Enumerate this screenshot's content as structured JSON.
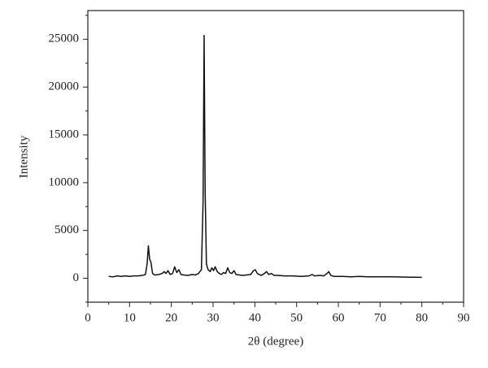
{
  "chart_data": {
    "type": "line",
    "xlabel": "2θ (degree)",
    "ylabel": "Intensity",
    "xlim": [
      0,
      90
    ],
    "xticks": [
      0,
      10,
      20,
      30,
      40,
      50,
      60,
      70,
      80,
      90
    ],
    "ylim": [
      -2500,
      28000
    ],
    "yticks": [
      0,
      5000,
      10000,
      15000,
      20000,
      25000
    ],
    "x": [
      5,
      6,
      7,
      8,
      9,
      10,
      11,
      12,
      13,
      13.8,
      14.2,
      14.5,
      14.8,
      15.1,
      15.5,
      16,
      17,
      17.8,
      18.3,
      18.7,
      19.2,
      19.7,
      20.3,
      20.8,
      21.3,
      21.8,
      22.3,
      23,
      24,
      25,
      25.8,
      26.5,
      27.2,
      27.6,
      27.85,
      28.1,
      28.4,
      28.8,
      29.3,
      29.7,
      30.1,
      30.5,
      31,
      31.5,
      32,
      32.5,
      33,
      33.5,
      34,
      34.5,
      35,
      35.5,
      36.3,
      37,
      38,
      39,
      39.7,
      40.1,
      40.6,
      41.5,
      42.3,
      42.8,
      43.3,
      44,
      44.6,
      45.5,
      47,
      49,
      51,
      53,
      53.7,
      54.3,
      55.5,
      56.5,
      57.3,
      57.7,
      58.2,
      59,
      61,
      63,
      65,
      67,
      70,
      73,
      76,
      80
    ],
    "series": [
      {
        "color": "#111111",
        "values": [
          200,
          150,
          250,
          200,
          250,
          200,
          250,
          250,
          300,
          400,
          1500,
          3400,
          2000,
          1700,
          500,
          350,
          400,
          500,
          700,
          500,
          800,
          400,
          500,
          1200,
          600,
          900,
          400,
          350,
          300,
          400,
          350,
          500,
          900,
          8000,
          25400,
          9000,
          1500,
          900,
          700,
          1100,
          800,
          1200,
          700,
          500,
          400,
          600,
          500,
          1100,
          600,
          500,
          800,
          400,
          350,
          300,
          350,
          400,
          800,
          900,
          500,
          300,
          500,
          700,
          400,
          500,
          300,
          300,
          250,
          250,
          200,
          250,
          400,
          250,
          300,
          250,
          500,
          700,
          300,
          200,
          200,
          150,
          200,
          150,
          150,
          150,
          120,
          100
        ]
      }
    ]
  }
}
